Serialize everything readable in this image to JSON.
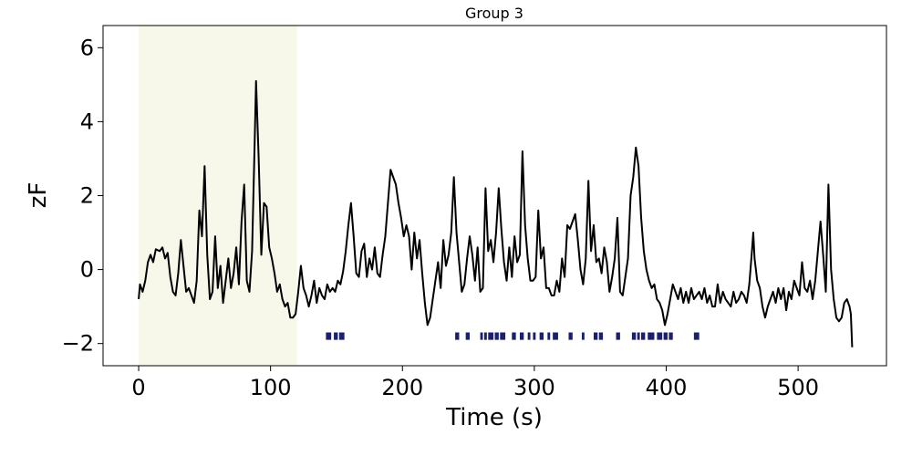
{
  "chart_data": {
    "type": "line",
    "title": "Group 3",
    "xlabel": "Time (s)",
    "ylabel": "zF",
    "xlim": [
      -27,
      567
    ],
    "ylim": [
      -2.6,
      6.6
    ],
    "x_ticks": [
      0,
      100,
      200,
      300,
      400,
      500
    ],
    "y_ticks": [
      -2,
      0,
      2,
      4,
      6
    ],
    "y_tick_labels": [
      "−2",
      "0",
      "2",
      "4",
      "6"
    ],
    "grid": false,
    "shaded_region": {
      "x_start": 0,
      "x_end": 120,
      "color": "#f8f8ea"
    },
    "event_band": {
      "y_bottom": -1.9,
      "y_top": -1.7,
      "color": "#1a1f6e"
    },
    "line_color": "#000000",
    "series": [
      {
        "values_xy": [
          [
            0,
            -0.8
          ],
          [
            1,
            -0.4
          ],
          [
            3,
            -0.6
          ],
          [
            5,
            -0.3
          ],
          [
            7,
            0.2
          ],
          [
            9,
            0.4
          ],
          [
            11,
            0.2
          ],
          [
            13,
            0.55
          ],
          [
            16,
            0.5
          ],
          [
            18,
            0.6
          ],
          [
            20,
            0.3
          ],
          [
            22,
            0.45
          ],
          [
            24,
            -0.2
          ],
          [
            26,
            -0.6
          ],
          [
            28,
            -0.7
          ],
          [
            30,
            -0.1
          ],
          [
            32,
            0.8
          ],
          [
            34,
            0.1
          ],
          [
            36,
            -0.6
          ],
          [
            38,
            -0.5
          ],
          [
            40,
            -0.7
          ],
          [
            42,
            -0.9
          ],
          [
            44,
            -0.3
          ],
          [
            46,
            1.6
          ],
          [
            48,
            0.9
          ],
          [
            50,
            2.8
          ],
          [
            52,
            0.4
          ],
          [
            54,
            -0.8
          ],
          [
            56,
            -0.6
          ],
          [
            58,
            0.9
          ],
          [
            60,
            -0.5
          ],
          [
            62,
            0.1
          ],
          [
            64,
            -0.9
          ],
          [
            66,
            -0.3
          ],
          [
            68,
            0.3
          ],
          [
            70,
            -0.5
          ],
          [
            72,
            -0.1
          ],
          [
            74,
            0.6
          ],
          [
            76,
            -0.4
          ],
          [
            78,
            1.3
          ],
          [
            80,
            2.3
          ],
          [
            82,
            -0.3
          ],
          [
            84,
            -0.6
          ],
          [
            86,
            0.5
          ],
          [
            88,
            3.5
          ],
          [
            89,
            5.1
          ],
          [
            91,
            3.0
          ],
          [
            93,
            0.4
          ],
          [
            95,
            1.8
          ],
          [
            97,
            1.7
          ],
          [
            99,
            0.6
          ],
          [
            101,
            0.3
          ],
          [
            103,
            -0.1
          ],
          [
            105,
            -0.6
          ],
          [
            107,
            -0.4
          ],
          [
            109,
            -0.8
          ],
          [
            111,
            -1.0
          ],
          [
            113,
            -0.9
          ],
          [
            115,
            -1.3
          ],
          [
            117,
            -1.3
          ],
          [
            119,
            -1.2
          ],
          [
            121,
            -0.6
          ],
          [
            123,
            0.1
          ],
          [
            125,
            -0.5
          ],
          [
            127,
            -0.7
          ],
          [
            129,
            -1.0
          ],
          [
            131,
            -0.7
          ],
          [
            133,
            -0.3
          ],
          [
            135,
            -0.9
          ],
          [
            137,
            -0.5
          ],
          [
            139,
            -0.7
          ],
          [
            141,
            -0.8
          ],
          [
            143,
            -0.4
          ],
          [
            145,
            -0.6
          ],
          [
            147,
            -0.5
          ],
          [
            149,
            -0.6
          ],
          [
            151,
            -0.3
          ],
          [
            153,
            -0.4
          ],
          [
            155,
            -0.05
          ],
          [
            157,
            0.5
          ],
          [
            159,
            1.2
          ],
          [
            161,
            1.8
          ],
          [
            163,
            0.9
          ],
          [
            165,
            -0.1
          ],
          [
            167,
            -0.2
          ],
          [
            169,
            0.5
          ],
          [
            171,
            0.7
          ],
          [
            173,
            -0.2
          ],
          [
            175,
            0.3
          ],
          [
            177,
            0.0
          ],
          [
            179,
            0.6
          ],
          [
            181,
            -0.1
          ],
          [
            183,
            -0.2
          ],
          [
            185,
            0.4
          ],
          [
            187,
            0.9
          ],
          [
            189,
            1.8
          ],
          [
            191,
            2.7
          ],
          [
            193,
            2.5
          ],
          [
            195,
            2.3
          ],
          [
            197,
            1.8
          ],
          [
            199,
            1.4
          ],
          [
            201,
            0.9
          ],
          [
            203,
            1.2
          ],
          [
            205,
            0.9
          ],
          [
            207,
            0.0
          ],
          [
            209,
            1.0
          ],
          [
            211,
            0.3
          ],
          [
            213,
            0.8
          ],
          [
            215,
            -0.1
          ],
          [
            217,
            -0.9
          ],
          [
            219,
            -1.5
          ],
          [
            221,
            -1.3
          ],
          [
            223,
            -0.8
          ],
          [
            225,
            -0.3
          ],
          [
            227,
            0.2
          ],
          [
            229,
            -0.5
          ],
          [
            231,
            0.8
          ],
          [
            233,
            0.1
          ],
          [
            235,
            0.4
          ],
          [
            237,
            1.0
          ],
          [
            239,
            2.5
          ],
          [
            241,
            1.0
          ],
          [
            243,
            0.2
          ],
          [
            245,
            -0.6
          ],
          [
            247,
            -0.4
          ],
          [
            249,
            0.3
          ],
          [
            251,
            0.9
          ],
          [
            253,
            0.4
          ],
          [
            255,
            -0.3
          ],
          [
            257,
            0.6
          ],
          [
            259,
            -0.6
          ],
          [
            261,
            -0.5
          ],
          [
            263,
            2.2
          ],
          [
            265,
            0.5
          ],
          [
            267,
            0.8
          ],
          [
            269,
            0.2
          ],
          [
            271,
            1.0
          ],
          [
            273,
            2.2
          ],
          [
            275,
            1.1
          ],
          [
            277,
            0.2
          ],
          [
            279,
            -0.3
          ],
          [
            281,
            0.6
          ],
          [
            283,
            -0.2
          ],
          [
            285,
            0.9
          ],
          [
            287,
            0.2
          ],
          [
            289,
            0.4
          ],
          [
            291,
            3.2
          ],
          [
            293,
            1.2
          ],
          [
            295,
            0.3
          ],
          [
            297,
            -0.3
          ],
          [
            299,
            -0.3
          ],
          [
            301,
            -0.2
          ],
          [
            303,
            1.6
          ],
          [
            305,
            0.3
          ],
          [
            307,
            0.6
          ],
          [
            309,
            -0.5
          ],
          [
            311,
            -0.5
          ],
          [
            313,
            -0.7
          ],
          [
            315,
            -0.7
          ],
          [
            317,
            -0.3
          ],
          [
            319,
            -0.6
          ],
          [
            321,
            0.3
          ],
          [
            323,
            -0.2
          ],
          [
            325,
            1.2
          ],
          [
            327,
            1.1
          ],
          [
            329,
            1.3
          ],
          [
            331,
            1.5
          ],
          [
            333,
            0.8
          ],
          [
            335,
            0.0
          ],
          [
            337,
            -0.4
          ],
          [
            339,
            0.3
          ],
          [
            341,
            2.4
          ],
          [
            343,
            0.5
          ],
          [
            345,
            1.2
          ],
          [
            347,
            0.2
          ],
          [
            349,
            0.3
          ],
          [
            351,
            -0.1
          ],
          [
            353,
            0.6
          ],
          [
            355,
            0.2
          ],
          [
            357,
            -0.6
          ],
          [
            359,
            -0.2
          ],
          [
            361,
            0.3
          ],
          [
            363,
            1.4
          ],
          [
            365,
            -0.6
          ],
          [
            367,
            -0.7
          ],
          [
            369,
            -0.2
          ],
          [
            371,
            0.3
          ],
          [
            373,
            2.0
          ],
          [
            375,
            2.5
          ],
          [
            377,
            3.3
          ],
          [
            379,
            2.8
          ],
          [
            381,
            1.4
          ],
          [
            383,
            0.5
          ],
          [
            385,
            0.0
          ],
          [
            387,
            -0.3
          ],
          [
            389,
            -0.5
          ],
          [
            391,
            -0.4
          ],
          [
            393,
            -0.8
          ],
          [
            395,
            -0.9
          ],
          [
            397,
            -1.1
          ],
          [
            399,
            -1.5
          ],
          [
            401,
            -1.2
          ],
          [
            403,
            -0.8
          ],
          [
            405,
            -0.4
          ],
          [
            407,
            -0.6
          ],
          [
            409,
            -0.8
          ],
          [
            411,
            -0.5
          ],
          [
            413,
            -0.9
          ],
          [
            415,
            -0.6
          ],
          [
            417,
            -0.9
          ],
          [
            419,
            -0.5
          ],
          [
            421,
            -0.8
          ],
          [
            423,
            -0.7
          ],
          [
            425,
            -0.6
          ],
          [
            427,
            -0.8
          ],
          [
            429,
            -0.5
          ],
          [
            431,
            -0.9
          ],
          [
            433,
            -0.7
          ],
          [
            435,
            -1.0
          ],
          [
            437,
            -1.0
          ],
          [
            439,
            -0.4
          ],
          [
            441,
            -0.9
          ],
          [
            443,
            -0.6
          ],
          [
            445,
            -0.8
          ],
          [
            447,
            -0.9
          ],
          [
            449,
            -1.0
          ],
          [
            451,
            -0.6
          ],
          [
            453,
            -0.9
          ],
          [
            455,
            -0.8
          ],
          [
            457,
            -0.6
          ],
          [
            459,
            -0.7
          ],
          [
            461,
            -0.9
          ],
          [
            463,
            -0.4
          ],
          [
            465,
            0.5
          ],
          [
            466,
            1.0
          ],
          [
            467,
            0.3
          ],
          [
            469,
            -0.3
          ],
          [
            471,
            -0.5
          ],
          [
            473,
            -1.0
          ],
          [
            475,
            -1.3
          ],
          [
            477,
            -1.0
          ],
          [
            479,
            -0.8
          ],
          [
            481,
            -0.6
          ],
          [
            483,
            -0.9
          ],
          [
            485,
            -0.5
          ],
          [
            487,
            -0.8
          ],
          [
            489,
            -0.5
          ],
          [
            491,
            -1.1
          ],
          [
            493,
            -0.6
          ],
          [
            495,
            -0.8
          ],
          [
            497,
            -0.3
          ],
          [
            499,
            -0.5
          ],
          [
            501,
            -0.7
          ],
          [
            503,
            0.2
          ],
          [
            505,
            -0.5
          ],
          [
            507,
            -0.6
          ],
          [
            509,
            -0.3
          ],
          [
            511,
            -0.8
          ],
          [
            513,
            -0.3
          ],
          [
            515,
            0.5
          ],
          [
            517,
            1.3
          ],
          [
            519,
            0.4
          ],
          [
            521,
            -0.6
          ],
          [
            523,
            2.3
          ],
          [
            525,
            0.0
          ],
          [
            527,
            -0.8
          ],
          [
            529,
            -1.3
          ],
          [
            531,
            -1.4
          ],
          [
            533,
            -1.3
          ],
          [
            535,
            -0.9
          ],
          [
            537,
            -0.8
          ],
          [
            539,
            -1.0
          ],
          [
            540,
            -1.2
          ],
          [
            541,
            -2.1
          ]
        ]
      }
    ],
    "event_intervals": [
      [
        142,
        146
      ],
      [
        148,
        151
      ],
      [
        152,
        156
      ],
      [
        240,
        243
      ],
      [
        248,
        251
      ],
      [
        259,
        261
      ],
      [
        262,
        264
      ],
      [
        265,
        269
      ],
      [
        270,
        273
      ],
      [
        274,
        278
      ],
      [
        283,
        286
      ],
      [
        289,
        292
      ],
      [
        295,
        297
      ],
      [
        299,
        301
      ],
      [
        304,
        307
      ],
      [
        310,
        312
      ],
      [
        314,
        318
      ],
      [
        326,
        329
      ],
      [
        336,
        338
      ],
      [
        345,
        348
      ],
      [
        349,
        352
      ],
      [
        362,
        365
      ],
      [
        374,
        377
      ],
      [
        378,
        380
      ],
      [
        381,
        384
      ],
      [
        386,
        391
      ],
      [
        393,
        397
      ],
      [
        398,
        401
      ],
      [
        402,
        405
      ],
      [
        421,
        425
      ]
    ]
  }
}
